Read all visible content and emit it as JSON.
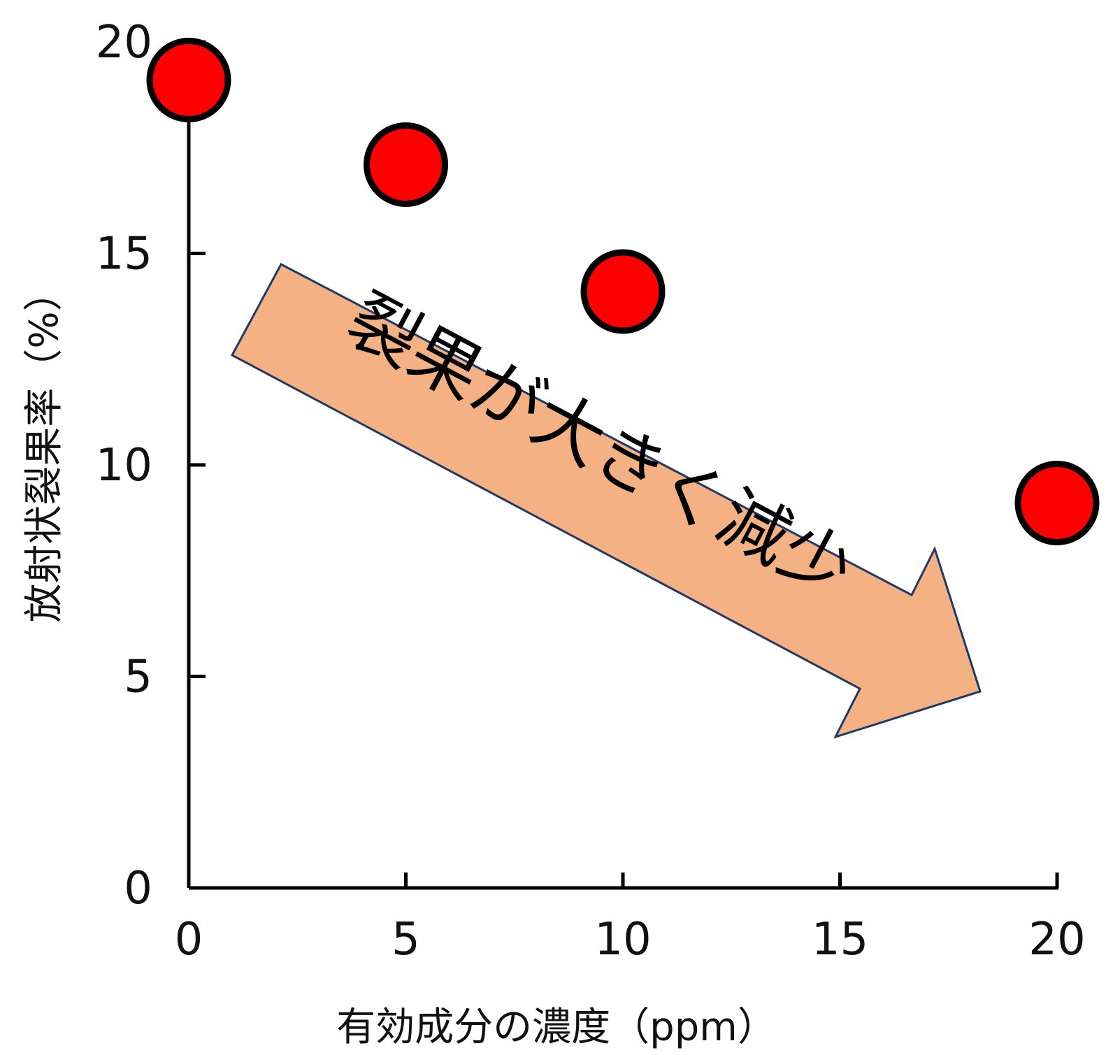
{
  "chart_data": {
    "type": "scatter",
    "xlabel": "有効成分の濃度（ppm）",
    "ylabel": "放射状裂果率（%）",
    "xlim": [
      0,
      20
    ],
    "ylim": [
      0,
      20
    ],
    "xticks": [
      "0",
      "5",
      "10",
      "15",
      "20"
    ],
    "yticks": [
      "0",
      "5",
      "10",
      "15",
      "20"
    ],
    "x": [
      0,
      5,
      10,
      20
    ],
    "y": [
      19.1,
      17.1,
      14.1,
      9.1
    ],
    "grid": false,
    "annotation": "裂果が大きく減少",
    "colors": {
      "point_fill": "#ff0000",
      "point_stroke": "#000000",
      "arrow_fill": "#f4b183",
      "arrow_stroke": "#1f3864",
      "axis": "#000000"
    }
  }
}
